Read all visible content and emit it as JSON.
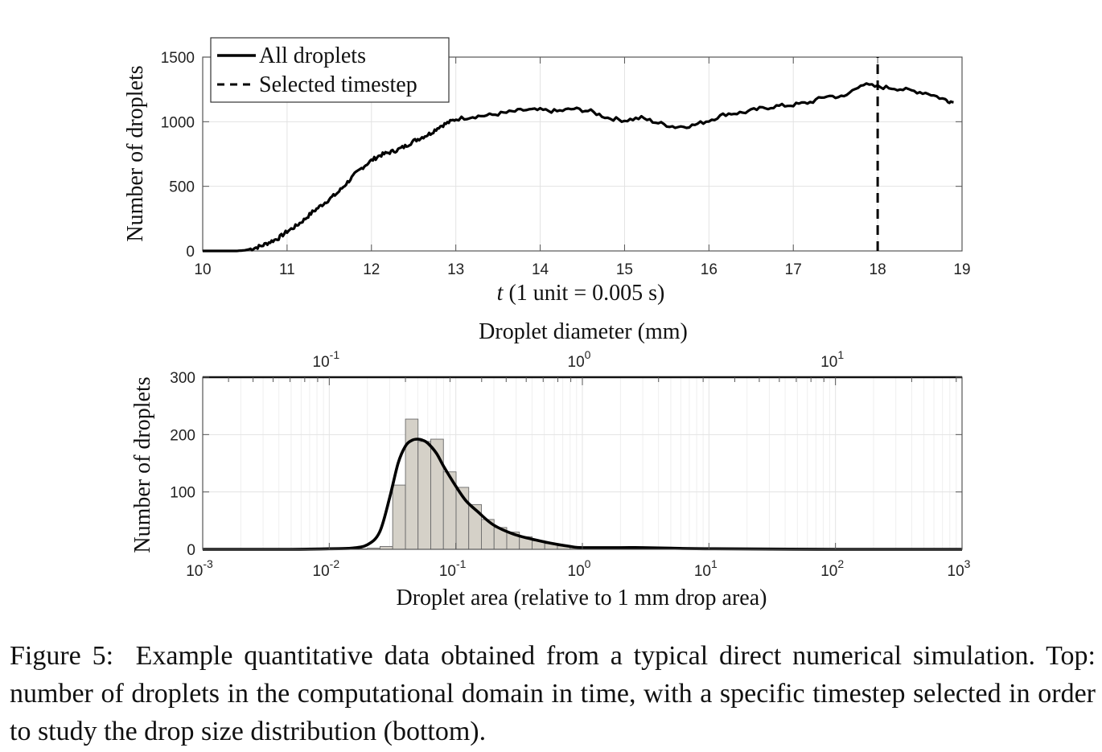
{
  "chart_data": [
    {
      "type": "line",
      "xlabel_var": "t",
      "xlabel_rest": " (1 unit = 0.005 s)",
      "ylabel": "Number of droplets",
      "xlim": [
        10,
        19
      ],
      "ylim": [
        0,
        1500
      ],
      "xticks": [
        "10",
        "11",
        "12",
        "13",
        "14",
        "15",
        "16",
        "17",
        "18",
        "19"
      ],
      "yticks": [
        "0",
        "500",
        "1000",
        "1500"
      ],
      "grid": true,
      "legend_placement": "top-left",
      "series": [
        {
          "name": "All droplets",
          "style": "solid",
          "x": [
            10,
            10.2,
            10.4,
            10.5,
            10.6,
            10.7,
            10.8,
            10.9,
            11.0,
            11.1,
            11.2,
            11.3,
            11.4,
            11.5,
            11.6,
            11.7,
            11.8,
            11.9,
            12.0,
            12.1,
            12.2,
            12.3,
            12.4,
            12.5,
            12.6,
            12.7,
            12.8,
            12.9,
            13.0,
            13.2,
            13.4,
            13.6,
            13.8,
            14.0,
            14.2,
            14.4,
            14.6,
            14.8,
            15.0,
            15.2,
            15.4,
            15.6,
            15.8,
            16.0,
            16.2,
            16.4,
            16.6,
            16.8,
            17.0,
            17.2,
            17.4,
            17.6,
            17.8,
            18.0,
            18.2,
            18.4,
            18.6,
            18.8,
            18.9
          ],
          "values": [
            0,
            0,
            0,
            5,
            20,
            40,
            70,
            100,
            150,
            190,
            240,
            300,
            350,
            400,
            450,
            520,
            590,
            650,
            700,
            740,
            760,
            780,
            810,
            850,
            880,
            910,
            960,
            990,
            1020,
            1040,
            1050,
            1070,
            1090,
            1090,
            1080,
            1100,
            1080,
            1030,
            1010,
            1030,
            990,
            960,
            970,
            1010,
            1060,
            1070,
            1100,
            1120,
            1130,
            1150,
            1200,
            1190,
            1290,
            1270,
            1260,
            1240,
            1220,
            1170,
            1150
          ]
        },
        {
          "name": "Selected timestep",
          "style": "dashed",
          "x": [
            18,
            18
          ],
          "values": [
            0,
            1500
          ]
        }
      ]
    },
    {
      "type": "bar",
      "x_scale": "log",
      "xlabel": "Droplet area (relative to 1 mm drop area)",
      "top_xlabel": "Droplet diameter (mm)",
      "ylabel": "Number of droplets",
      "xlim": [
        0.001,
        1000
      ],
      "ylim": [
        0,
        300
      ],
      "xticks": [
        {
          "base": "10",
          "exp": "-3"
        },
        {
          "base": "10",
          "exp": "-2"
        },
        {
          "base": "10",
          "exp": "-1"
        },
        {
          "base": "10",
          "exp": "0"
        },
        {
          "base": "10",
          "exp": "1"
        },
        {
          "base": "10",
          "exp": "2"
        },
        {
          "base": "10",
          "exp": "3"
        }
      ],
      "top_xticks": [
        {
          "base": "10",
          "exp": "-1",
          "diameter": 0.1
        },
        {
          "base": "10",
          "exp": "0",
          "diameter": 1
        },
        {
          "base": "10",
          "exp": "1",
          "diameter": 10
        }
      ],
      "yticks": [
        "0",
        "100",
        "200",
        "300"
      ],
      "grid": true,
      "bars": {
        "edges": [
          0.0159,
          0.02,
          0.0252,
          0.0317,
          0.04,
          0.0503,
          0.0634,
          0.0798,
          0.1005,
          0.1265,
          0.1593,
          0.2006,
          0.2526,
          0.318,
          0.4004,
          0.5041,
          0.6347,
          0.7991,
          1.0061,
          1.2667
        ],
        "values": [
          1,
          2,
          5,
          112,
          227,
          188,
          192,
          135,
          108,
          78,
          52,
          38,
          30,
          22,
          15,
          10,
          6,
          3,
          2
        ]
      },
      "curve": {
        "x": [
          0.001,
          0.005,
          0.01,
          0.015,
          0.02,
          0.025,
          0.03,
          0.035,
          0.04,
          0.045,
          0.05,
          0.055,
          0.06,
          0.07,
          0.08,
          0.1,
          0.12,
          0.15,
          0.2,
          0.3,
          0.5,
          0.8,
          1,
          2,
          3,
          5,
          10,
          100,
          1000
        ],
        "values": [
          0,
          0,
          1,
          2,
          8,
          30,
          90,
          150,
          180,
          190,
          192,
          190,
          185,
          168,
          145,
          110,
          85,
          65,
          42,
          25,
          13,
          5,
          3,
          3,
          3,
          2,
          1,
          0,
          0
        ]
      }
    }
  ],
  "caption": {
    "prefix": "Figure 5:",
    "text": "Example quantitative data obtained from a typical direct numerical simulation. Top: number of droplets in the computational domain in time, with a specific timestep selected in order to study the drop size distribution (bottom)."
  },
  "colors": {
    "line": "#000000",
    "bar_fill": "#d5d1c8",
    "bar_stroke": "#6b6b6b",
    "grid": "#e3e3e3",
    "axes": "#555555"
  }
}
